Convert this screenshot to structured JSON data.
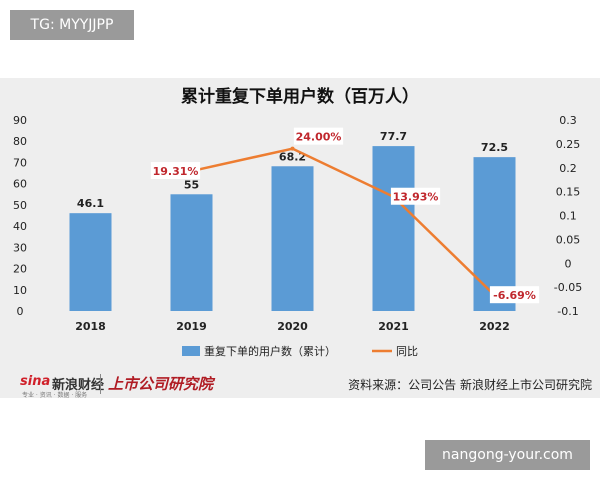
{
  "watermarks": {
    "top_left": "TG: MYYJJPP",
    "bottom_right": "nangong-your.com"
  },
  "chart_data": {
    "type": "bar",
    "title": "累计重复下单用户数（百万人）",
    "categories": [
      "2018",
      "2019",
      "2020",
      "2021",
      "2022"
    ],
    "series": [
      {
        "name": "重复下单的用户数（累计）",
        "type": "bar",
        "axis": "left",
        "color": "#5b9bd5",
        "values": [
          46.1,
          55,
          68.2,
          77.7,
          72.5
        ],
        "labels": [
          "46.1",
          "55",
          "68.2",
          "77.7",
          "72.5"
        ]
      },
      {
        "name": "同比",
        "type": "line",
        "axis": "right",
        "color": "#ed7d31",
        "values": [
          null,
          0.1931,
          0.24,
          0.1393,
          -0.0669
        ],
        "labels": [
          "",
          "19.31%",
          "24.00%",
          "13.93%",
          "-6.69%"
        ]
      }
    ],
    "y_left": {
      "min": 0,
      "max": 90,
      "ticks": [
        "0",
        "10",
        "20",
        "30",
        "40",
        "50",
        "60",
        "70",
        "80",
        "90"
      ]
    },
    "y_right": {
      "min": -0.1,
      "max": 0.3,
      "ticks": [
        "-0.1",
        "-0.05",
        "0",
        "0.05",
        "0.1",
        "0.15",
        "0.2",
        "0.25",
        "0.3"
      ]
    },
    "legend_position": "bottom",
    "grid": false
  },
  "footer": {
    "sina_brand": "sina",
    "sina_name": "新浪财经",
    "sina_sub": "专业 · 资讯 · 数据 · 服务",
    "institute": "上市公司研究院",
    "source": "资料来源：公司公告 新浪财经上市公司研究院"
  }
}
